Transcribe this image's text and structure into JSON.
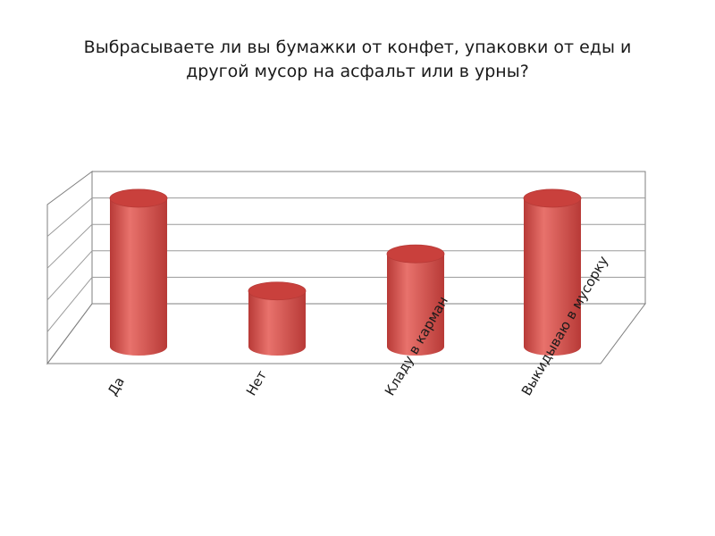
{
  "chart_data": {
    "type": "bar",
    "style": "3d-cylinder",
    "title_lines": [
      "Выбрасываете ли вы бумажки от конфет, упаковки от еды и",
      "другой мусор на асфальт или в урны?"
    ],
    "categories": [
      "Да",
      "Нет",
      "Кладу в карман",
      "Выкидываю в мусорку"
    ],
    "values": [
      4.8,
      1.8,
      3.0,
      4.8
    ],
    "ylim": [
      0,
      5
    ],
    "grid": true,
    "legend": "none",
    "colors": {
      "bar": "#d9534f",
      "bar_dark": "#b83a37",
      "bar_light": "#e8726c",
      "top": "#c9403c",
      "grid": "#9a9a9a",
      "axis": "#7f7f7f",
      "text": "#1a1a1a"
    }
  }
}
